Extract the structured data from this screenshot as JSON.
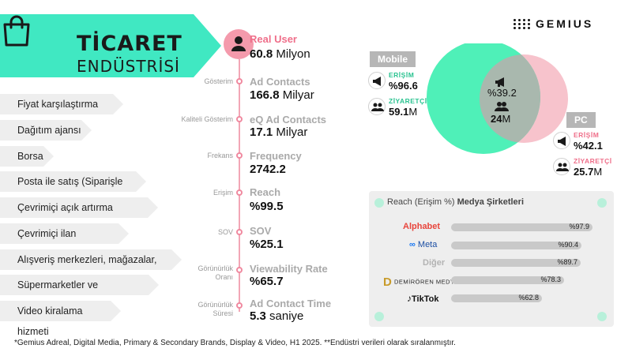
{
  "banner": {
    "title_line1": "TİCARET",
    "title_line2": "ENDÜSTRİSİ",
    "icon": "shopping-bag-icon",
    "accent_color": "#40e8c2"
  },
  "brand": {
    "name": "GEMIUS"
  },
  "industries": [
    "Fiyat karşılaştırma sitesi",
    "Dağıtım ajansı",
    "Borsa",
    "Posta ile satış (Siparişle satış)",
    "Çevrimiçi açık artırma hizmetleri",
    "Çevrimiçi ilan hizmetleri",
    "Alışveriş merkezleri, mağazalar, depolar",
    "Süpermarketler ve hipermarketler",
    "Video kiralama hizmeti"
  ],
  "metrics": {
    "real_user": {
      "label": "Real User",
      "value": "60.8",
      "unit": "Milyon"
    },
    "ad_contacts": {
      "side": "Gösterim",
      "label": "Ad Contacts",
      "value": "166.8",
      "unit": "Milyar"
    },
    "eq_ad_contacts": {
      "side": "Kaliteli Gösterim",
      "label": "eQ Ad Contacts",
      "value": "17.1",
      "unit": "Milyar"
    },
    "frequency": {
      "side": "Frekans",
      "label": "Frequency",
      "value": "2742.2"
    },
    "reach": {
      "side": "Erişim",
      "label": "Reach",
      "value": "%99.5"
    },
    "sov": {
      "side": "SOV",
      "label": "SOV",
      "value": "%25.1"
    },
    "viewability": {
      "side_1": "Görünürlük",
      "side_2": "Oranı",
      "label": "Viewability Rate",
      "value": "%65.7"
    },
    "contact_time": {
      "side_1": "Görünürlük",
      "side_2": "Süresi",
      "label": "Ad Contact Time",
      "value": "5.3",
      "unit": "saniye"
    }
  },
  "venn": {
    "mobile": {
      "label": "Mobile",
      "reach_name": "ERİŞİM",
      "reach_value": "%96.6",
      "visitor_name": "ZİYARETÇİ",
      "visitor_value": "59.1",
      "visitor_unit": "M",
      "color": "#4ff0b8"
    },
    "pc": {
      "label": "PC",
      "reach_name": "ERİŞİM",
      "reach_value": "%42.1",
      "visitor_name": "ZİYARETÇİ",
      "visitor_value": "25.7",
      "visitor_unit": "M",
      "color": "#f7c3cc"
    },
    "overlap": {
      "reach_value": "%39.2",
      "visitor_value": "24",
      "visitor_unit": "M"
    }
  },
  "media_panel": {
    "title_plain": "Reach (Erişim %) ",
    "title_bold": "Medya Şirketleri"
  },
  "chart_data": {
    "type": "bar",
    "title": "Reach (Erişim %) Medya Şirketleri",
    "categories": [
      "Alphabet",
      "Meta",
      "Diğer",
      "DEMİRÖREN MEDYA",
      "TikTok"
    ],
    "values": [
      97.9,
      90.4,
      89.7,
      78.3,
      62.8
    ],
    "value_labels": [
      "%97.9",
      "%90.4",
      "%89.7",
      "%78.3",
      "%62.8"
    ],
    "xlim": [
      0,
      100
    ]
  },
  "footnote": "*Gemius Adreal, Digital Media, Primary & Secondary Brands, Display & Video, H1 2025.  **Endüstri verileri olarak sıralanmıştır."
}
